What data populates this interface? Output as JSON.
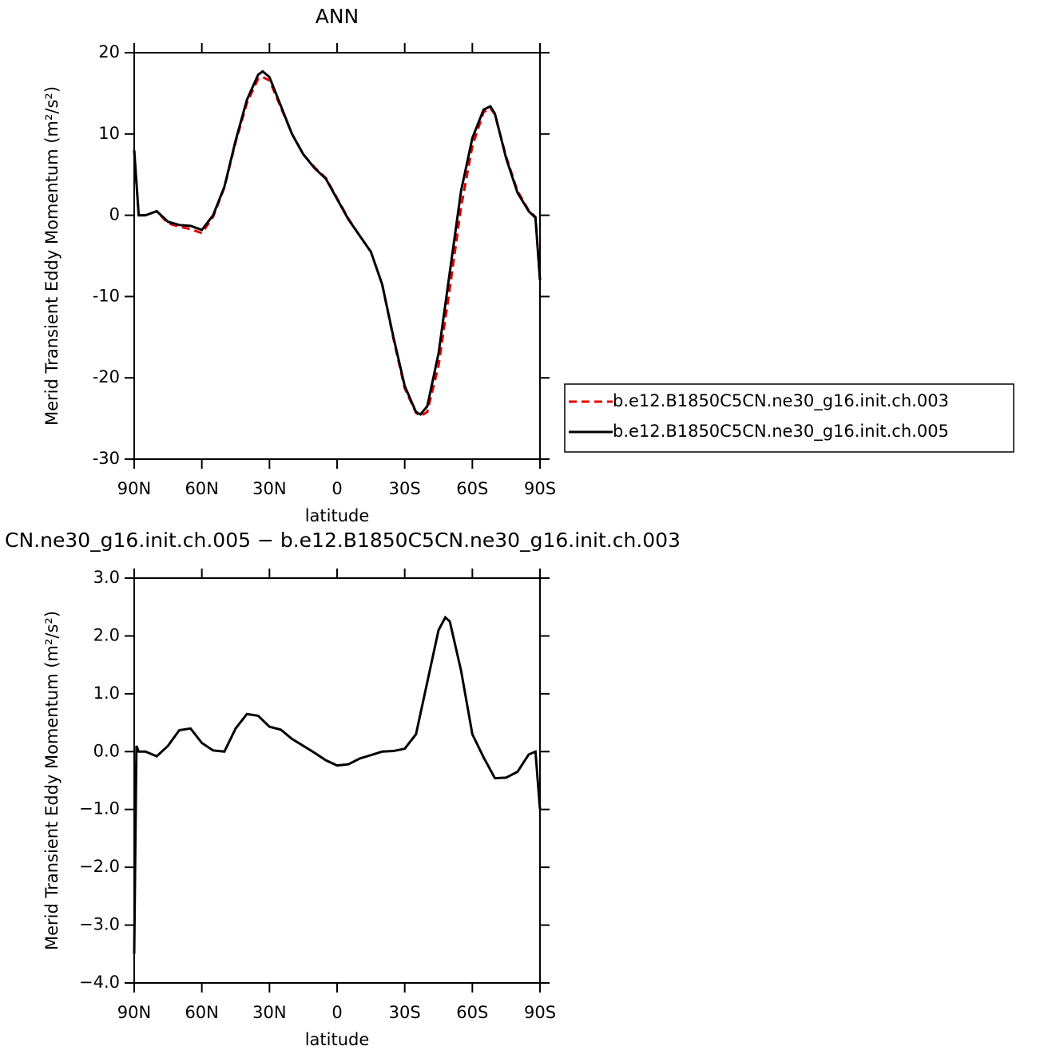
{
  "chart_data": [
    {
      "type": "line",
      "title": "ANN",
      "xlabel": "latitude",
      "ylabel": "Merid Transient Eddy Momentum (m²/s²)",
      "x": [
        90,
        88,
        85,
        80,
        75,
        70,
        65,
        60,
        55,
        50,
        45,
        40,
        35,
        33,
        30,
        25,
        20,
        15,
        10,
        5,
        0,
        -5,
        -10,
        -15,
        -20,
        -25,
        -30,
        -35,
        -37,
        -40,
        -45,
        -50,
        -55,
        -60,
        -65,
        -68,
        -70,
        -75,
        -80,
        -85,
        -88,
        -90
      ],
      "series": [
        {
          "name": "b.e12.B1850C5CN.ne30_g16.init.ch.003",
          "color": "#e00000",
          "dashed": true,
          "values": [
            8,
            0,
            0,
            0.5,
            -1,
            -1.4,
            -1.7,
            -2.2,
            -0.2,
            3.4,
            9,
            13.8,
            16.8,
            17,
            16.6,
            13.3,
            10,
            7.5,
            5.9,
            4.6,
            2.1,
            -0.4,
            -2.5,
            -4.5,
            -8.5,
            -15.2,
            -21.3,
            -24.3,
            -24.7,
            -24.2,
            -18.5,
            -9,
            1,
            8.5,
            12.7,
            13.2,
            12.4,
            7.2,
            3,
            0.6,
            -0.2,
            -8
          ]
        },
        {
          "name": "b.e12.B1850C5CN.ne30_g16.init.ch.005",
          "color": "#000000",
          "dashed": false,
          "values": [
            8,
            0,
            0,
            0.5,
            -0.8,
            -1.2,
            -1.3,
            -1.8,
            0,
            3.5,
            9.2,
            14.2,
            17.3,
            17.7,
            17,
            13.5,
            10,
            7.5,
            5.8,
            4.5,
            2,
            -0.5,
            -2.5,
            -4.5,
            -8.5,
            -15,
            -21,
            -24.2,
            -24.5,
            -23.5,
            -17,
            -7,
            3,
            9.5,
            13,
            13.4,
            12.5,
            7,
            2.8,
            0.5,
            -0.3,
            -8
          ]
        }
      ],
      "xlim": [
        90,
        -90
      ],
      "xticks": [
        {
          "value": 90,
          "label": "90N"
        },
        {
          "value": 60,
          "label": "60N"
        },
        {
          "value": 30,
          "label": "30N"
        },
        0,
        {
          "value": -30,
          "label": "30S"
        },
        {
          "value": -60,
          "label": "60S"
        },
        {
          "value": -90,
          "label": "90S"
        }
      ],
      "ylim": [
        -30,
        20
      ],
      "yticks": [
        -30,
        -20,
        -10,
        0,
        10,
        20
      ],
      "legend": "right"
    },
    {
      "type": "line",
      "title": "CN.ne30_g16.init.ch.005 − b.e12.B1850C5CN.ne30_g16.init.ch.003",
      "xlabel": "latitude",
      "ylabel": "Merid Transient Eddy Momentum (m²/s²)",
      "x": [
        90,
        89,
        88,
        85,
        80,
        75,
        70,
        65,
        60,
        55,
        50,
        45,
        40,
        35,
        30,
        25,
        20,
        15,
        10,
        5,
        0,
        -5,
        -10,
        -15,
        -20,
        -25,
        -30,
        -35,
        -40,
        -45,
        -48,
        -50,
        -55,
        -60,
        -65,
        -70,
        -75,
        -80,
        -85,
        -88,
        -90
      ],
      "series": [
        {
          "name": "difference",
          "color": "#000000",
          "dashed": false,
          "values": [
            -3.5,
            0.1,
            0,
            0,
            -0.08,
            0.1,
            0.37,
            0.4,
            0.15,
            0.02,
            0,
            0.4,
            0.65,
            0.62,
            0.43,
            0.38,
            0.22,
            0.1,
            -0.02,
            -0.15,
            -0.24,
            -0.22,
            -0.12,
            -0.06,
            0,
            0.01,
            0.05,
            0.3,
            1.2,
            2.1,
            2.32,
            2.25,
            1.4,
            0.3,
            -0.1,
            -0.46,
            -0.45,
            -0.35,
            -0.05,
            0,
            -1
          ]
        }
      ],
      "xlim": [
        90,
        -90
      ],
      "xticks": [
        {
          "value": 90,
          "label": "90N"
        },
        {
          "value": 60,
          "label": "60N"
        },
        {
          "value": 30,
          "label": "30N"
        },
        0,
        {
          "value": -30,
          "label": "30S"
        },
        {
          "value": -60,
          "label": "60S"
        },
        {
          "value": -90,
          "label": "90S"
        }
      ],
      "ylim": [
        -4,
        3
      ],
      "yticks": [
        {
          "value": -4,
          "label": "−4.0"
        },
        {
          "value": -3,
          "label": "−3.0"
        },
        {
          "value": -2,
          "label": "−2.0"
        },
        {
          "value": -1,
          "label": "−1.0"
        },
        {
          "value": 0,
          "label": "0.0"
        },
        {
          "value": 1,
          "label": "1.0"
        },
        {
          "value": 2,
          "label": "2.0"
        },
        {
          "value": 3,
          "label": "3.0"
        }
      ]
    }
  ]
}
